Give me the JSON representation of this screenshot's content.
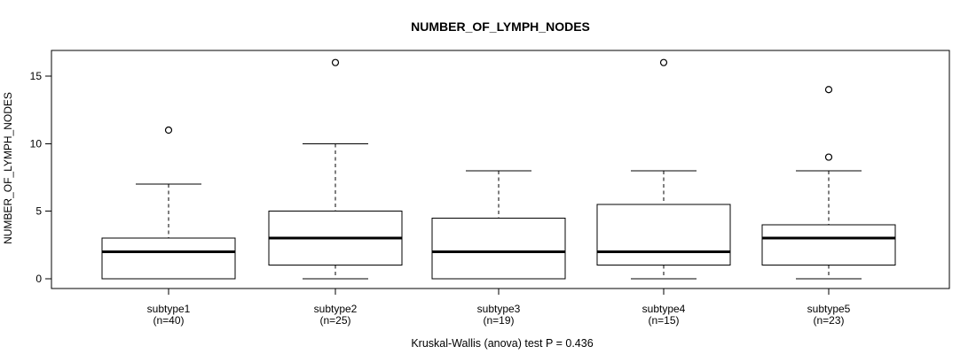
{
  "chart_data": {
    "type": "boxplot",
    "title": "NUMBER_OF_LYMPH_NODES",
    "ylabel": "NUMBER_OF_LYMPH_NODES",
    "xlabel": "",
    "caption": "Kruskal-Wallis (anova) test P = 0.436",
    "p_value": 0.436,
    "yticks": [
      0,
      5,
      10,
      15
    ],
    "ylim": [
      -0.7,
      17
    ],
    "grid": false,
    "legend": "none",
    "categories": [
      "subtype1",
      "subtype2",
      "subtype3",
      "subtype4",
      "subtype5"
    ],
    "category_sublabels": [
      "(n=40)",
      "(n=25)",
      "(n=19)",
      "(n=15)",
      "(n=23)"
    ],
    "series": [
      {
        "name": "subtype1",
        "n": 40,
        "whisker_low": 0,
        "q1": 0,
        "median": 2,
        "q3": 3,
        "whisker_high": 7,
        "outliers": [
          11
        ]
      },
      {
        "name": "subtype2",
        "n": 25,
        "whisker_low": 0,
        "q1": 1,
        "median": 3,
        "q3": 5,
        "whisker_high": 10,
        "outliers": [
          16
        ]
      },
      {
        "name": "subtype3",
        "n": 19,
        "whisker_low": 0,
        "q1": 0,
        "median": 2,
        "q3": 4.5,
        "whisker_high": 8,
        "outliers": []
      },
      {
        "name": "subtype4",
        "n": 15,
        "whisker_low": 0,
        "q1": 1,
        "median": 2,
        "q3": 5.5,
        "whisker_high": 8,
        "outliers": [
          16
        ]
      },
      {
        "name": "subtype5",
        "n": 23,
        "whisker_low": 0,
        "q1": 1,
        "median": 3,
        "q3": 4,
        "whisker_high": 8,
        "outliers": [
          9,
          14
        ]
      }
    ],
    "colors": {
      "line": "#000000",
      "box_fill": "#ffffff",
      "background": "#ffffff"
    }
  }
}
